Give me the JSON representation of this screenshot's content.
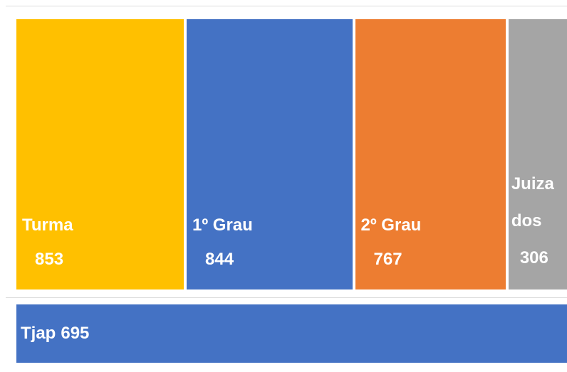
{
  "chart_data": {
    "type": "treemap",
    "categories": [
      "Turma",
      "1º Grau",
      "2º Grau",
      "Juiza dos",
      "Tjap"
    ],
    "values": [
      853,
      844,
      767,
      306,
      695
    ],
    "colors": [
      "#ffc000",
      "#4472c4",
      "#ed7d31",
      "#a5a5a5",
      "#4472c4"
    ]
  }
}
